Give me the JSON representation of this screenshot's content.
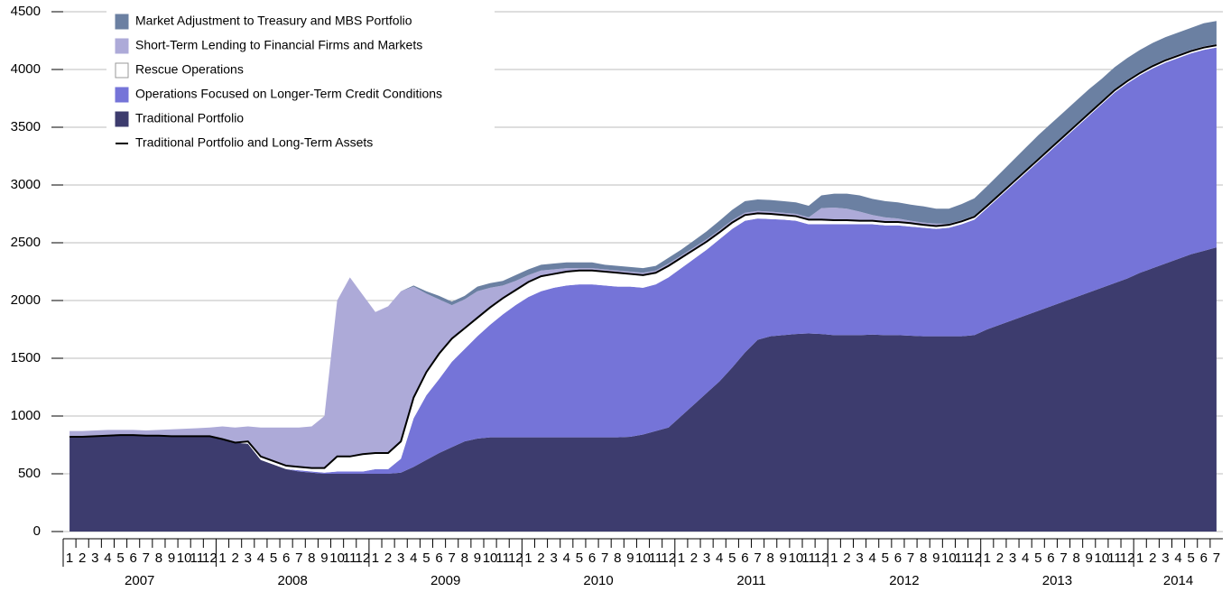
{
  "chart_data": {
    "type": "stacked_area",
    "categories": [
      "1",
      "2",
      "3",
      "4",
      "5",
      "6",
      "7",
      "8",
      "9",
      "10",
      "11",
      "12",
      "1",
      "2",
      "3",
      "4",
      "5",
      "6",
      "7",
      "8",
      "9",
      "10",
      "11",
      "12",
      "1",
      "2",
      "3",
      "4",
      "5",
      "6",
      "7",
      "8",
      "9",
      "10",
      "11",
      "12",
      "1",
      "2",
      "3",
      "4",
      "5",
      "6",
      "7",
      "8",
      "9",
      "10",
      "11",
      "12",
      "1",
      "2",
      "3",
      "4",
      "5",
      "6",
      "7",
      "8",
      "9",
      "10",
      "11",
      "12",
      "1",
      "2",
      "3",
      "4",
      "5",
      "6",
      "7",
      "8",
      "9",
      "10",
      "11",
      "12",
      "1",
      "2",
      "3",
      "4",
      "5",
      "6",
      "7",
      "8",
      "9",
      "10",
      "11",
      "12",
      "1",
      "2",
      "3",
      "4",
      "5",
      "6",
      "7"
    ],
    "years": [
      "2007",
      "2008",
      "2009",
      "2010",
      "2011",
      "2012",
      "2013",
      "2014"
    ],
    "ylim": [
      0,
      4500
    ],
    "yticks": [
      0,
      500,
      1000,
      1500,
      2000,
      2500,
      3000,
      3500,
      4000,
      4500
    ],
    "grid": true,
    "legend": "top-left",
    "series": [
      {
        "name": "Market Adjustment to Treasury and MBS Portfolio",
        "kind": "area",
        "color": "#6b80a2",
        "values": [
          0,
          0,
          0,
          0,
          0,
          0,
          0,
          0,
          0,
          0,
          0,
          0,
          0,
          0,
          0,
          0,
          0,
          0,
          0,
          0,
          0,
          0,
          0,
          0,
          0,
          0,
          0,
          10,
          20,
          30,
          30,
          30,
          40,
          40,
          40,
          50,
          50,
          50,
          50,
          50,
          50,
          50,
          40,
          40,
          40,
          40,
          40,
          50,
          50,
          60,
          70,
          80,
          90,
          100,
          100,
          100,
          100,
          100,
          100,
          110,
          120,
          130,
          140,
          140,
          140,
          140,
          140,
          140,
          130,
          130,
          140,
          150,
          160,
          170,
          180,
          190,
          200,
          200,
          200,
          200,
          200,
          190,
          190,
          190,
          190,
          190,
          190,
          190,
          190,
          200,
          200
        ]
      },
      {
        "name": "Short-Term Lending to Financial Firms and Markets",
        "kind": "area",
        "color": "#adaad8",
        "values": [
          50,
          50,
          50,
          50,
          45,
          45,
          45,
          50,
          60,
          65,
          70,
          75,
          110,
          130,
          130,
          250,
          290,
          330,
          340,
          360,
          450,
          1350,
          1550,
          1380,
          1220,
          1270,
          1300,
          960,
          680,
          470,
          290,
          250,
          230,
          170,
          110,
          80,
          60,
          50,
          40,
          30,
          20,
          20,
          20,
          20,
          20,
          20,
          20,
          20,
          20,
          20,
          20,
          20,
          20,
          20,
          20,
          20,
          20,
          20,
          20,
          100,
          110,
          100,
          80,
          50,
          40,
          30,
          20,
          20,
          20,
          10,
          10,
          10,
          10,
          10,
          10,
          10,
          10,
          10,
          10,
          10,
          10,
          10,
          10,
          10,
          10,
          10,
          10,
          10,
          10,
          10,
          10
        ]
      },
      {
        "name": "Rescue Operations",
        "kind": "area",
        "color": "#ffffff",
        "values": [
          0,
          0,
          0,
          0,
          0,
          0,
          0,
          0,
          0,
          0,
          0,
          0,
          0,
          0,
          20,
          30,
          30,
          30,
          30,
          30,
          40,
          130,
          130,
          150,
          140,
          140,
          150,
          180,
          200,
          220,
          200,
          180,
          160,
          150,
          140,
          130,
          130,
          130,
          120,
          120,
          120,
          120,
          120,
          120,
          110,
          110,
          100,
          100,
          90,
          80,
          70,
          60,
          55,
          50,
          45,
          45,
          40,
          40,
          40,
          40,
          35,
          35,
          30,
          30,
          30,
          30,
          30,
          25,
          25,
          25,
          25,
          25,
          20,
          20,
          20,
          20,
          20,
          20,
          20,
          20,
          20,
          20,
          20,
          20,
          20,
          20,
          20,
          20,
          20,
          20,
          20
        ]
      },
      {
        "name": "Operations Focused on Longer-Term Credit Conditions",
        "kind": "area",
        "color": "#7574d8",
        "values": [
          0,
          0,
          0,
          0,
          0,
          0,
          0,
          0,
          0,
          0,
          0,
          0,
          0,
          0,
          0,
          0,
          0,
          0,
          10,
          10,
          10,
          20,
          20,
          20,
          40,
          40,
          120,
          420,
          560,
          640,
          740,
          800,
          885,
          975,
          1065,
          1145,
          1215,
          1265,
          1295,
          1315,
          1325,
          1325,
          1315,
          1305,
          1300,
          1270,
          1270,
          1300,
          1280,
          1260,
          1240,
          1230,
          1200,
          1140,
          1050,
          1015,
          1000,
          980,
          945,
          950,
          960,
          960,
          960,
          955,
          950,
          950,
          945,
          940,
          930,
          940,
          970,
          1000,
          1050,
          1110,
          1170,
          1230,
          1290,
          1350,
          1410,
          1470,
          1530,
          1590,
          1650,
          1690,
          1710,
          1730,
          1740,
          1740,
          1740,
          1740,
          1730
        ]
      },
      {
        "name": "Traditional Portfolio",
        "kind": "area",
        "color": "#3d3c6e",
        "values": [
          820,
          820,
          825,
          830,
          835,
          835,
          830,
          830,
          825,
          825,
          825,
          825,
          800,
          770,
          760,
          620,
          580,
          540,
          520,
          510,
          500,
          500,
          500,
          500,
          500,
          500,
          510,
          560,
          620,
          680,
          730,
          780,
          805,
          815,
          815,
          815,
          815,
          815,
          815,
          815,
          815,
          815,
          815,
          815,
          820,
          840,
          870,
          900,
          1000,
          1100,
          1200,
          1300,
          1420,
          1550,
          1660,
          1690,
          1700,
          1710,
          1715,
          1710,
          1700,
          1700,
          1700,
          1705,
          1700,
          1700,
          1695,
          1690,
          1690,
          1690,
          1690,
          1700,
          1750,
          1790,
          1830,
          1870,
          1910,
          1950,
          1990,
          2030,
          2070,
          2110,
          2150,
          2190,
          2240,
          2280,
          2320,
          2360,
          2400,
          2430,
          2460
        ]
      },
      {
        "name": "Traditional Portfolio and Long-Term Assets",
        "kind": "line",
        "color": "#000000",
        "values": [
          820,
          820,
          825,
          830,
          835,
          835,
          830,
          830,
          825,
          825,
          825,
          825,
          800,
          770,
          780,
          650,
          610,
          570,
          560,
          550,
          550,
          650,
          650,
          670,
          680,
          680,
          780,
          1160,
          1380,
          1540,
          1670,
          1760,
          1850,
          1940,
          2020,
          2090,
          2160,
          2210,
          2230,
          2250,
          2260,
          2260,
          2250,
          2240,
          2230,
          2220,
          2240,
          2300,
          2370,
          2440,
          2510,
          2590,
          2675,
          2740,
          2755,
          2750,
          2740,
          2730,
          2700,
          2700,
          2695,
          2695,
          2690,
          2690,
          2680,
          2680,
          2670,
          2655,
          2645,
          2655,
          2685,
          2725,
          2820,
          2920,
          3020,
          3120,
          3220,
          3320,
          3420,
          3520,
          3620,
          3720,
          3820,
          3900,
          3970,
          4030,
          4080,
          4120,
          4160,
          4190,
          4210
        ]
      }
    ]
  }
}
